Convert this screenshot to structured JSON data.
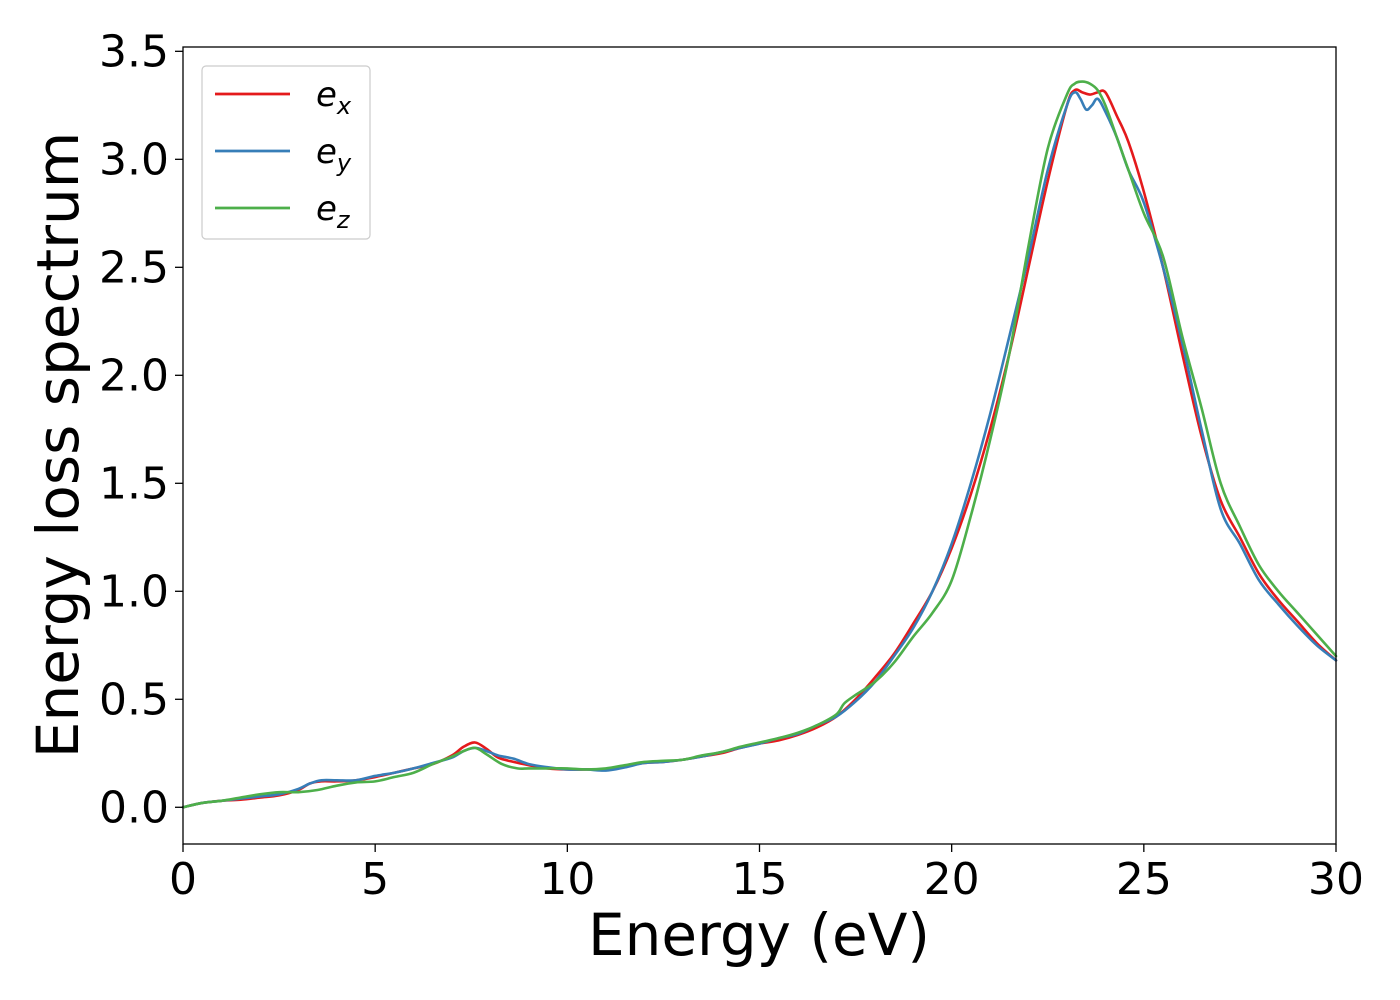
{
  "chart_data": {
    "type": "line",
    "xlabel": "Energy (eV)",
    "ylabel": "Energy loss spectrum",
    "xlim": [
      0,
      30
    ],
    "ylim": [
      -0.17,
      3.52
    ],
    "xticks": [
      0,
      5,
      10,
      15,
      20,
      25,
      30
    ],
    "xtick_labels": [
      "0",
      "5",
      "10",
      "15",
      "20",
      "25",
      "30"
    ],
    "yticks": [
      0.0,
      0.5,
      1.0,
      1.5,
      2.0,
      2.5,
      3.0,
      3.5
    ],
    "ytick_labels": [
      "0.0",
      "0.5",
      "1.0",
      "1.5",
      "2.0",
      "2.5",
      "3.0",
      "3.5"
    ],
    "grid": false,
    "legend_position": "top-left",
    "series": [
      {
        "name": "e",
        "subscript": "x",
        "color": "#e41a1c",
        "x": [
          0,
          0.5,
          1,
          1.5,
          2,
          2.5,
          3,
          3.3,
          3.6,
          4,
          4.5,
          5,
          5.5,
          6,
          6.5,
          7,
          7.3,
          7.6,
          7.9,
          8.2,
          8.6,
          9,
          9.5,
          10,
          10.5,
          11,
          11.5,
          12,
          12.5,
          13,
          13.5,
          14,
          14.5,
          15,
          15.5,
          16,
          16.5,
          17,
          17.5,
          18,
          18.5,
          19,
          19.5,
          20,
          20.5,
          21,
          21.5,
          22,
          22.5,
          23,
          23.2,
          23.4,
          23.6,
          23.8,
          24,
          24.3,
          24.6,
          25,
          25.5,
          26,
          26.5,
          27,
          27.5,
          28,
          28.5,
          29,
          29.5,
          30
        ],
        "y": [
          0.0,
          0.02,
          0.03,
          0.035,
          0.045,
          0.055,
          0.08,
          0.11,
          0.12,
          0.12,
          0.125,
          0.14,
          0.16,
          0.18,
          0.2,
          0.24,
          0.28,
          0.3,
          0.27,
          0.23,
          0.21,
          0.195,
          0.18,
          0.175,
          0.175,
          0.175,
          0.19,
          0.205,
          0.21,
          0.22,
          0.235,
          0.25,
          0.275,
          0.295,
          0.31,
          0.335,
          0.37,
          0.42,
          0.5,
          0.6,
          0.71,
          0.85,
          1.0,
          1.2,
          1.45,
          1.75,
          2.1,
          2.5,
          2.9,
          3.25,
          3.32,
          3.31,
          3.3,
          3.31,
          3.31,
          3.2,
          3.08,
          2.85,
          2.5,
          2.1,
          1.72,
          1.42,
          1.25,
          1.08,
          0.96,
          0.86,
          0.76,
          0.68
        ]
      },
      {
        "name": "e",
        "subscript": "y",
        "color": "#377eb8",
        "x": [
          0,
          0.5,
          1,
          1.5,
          2,
          2.5,
          3,
          3.3,
          3.6,
          4,
          4.5,
          5,
          5.5,
          6,
          6.5,
          7,
          7.3,
          7.6,
          7.9,
          8.2,
          8.6,
          9,
          9.5,
          10,
          10.5,
          11,
          11.5,
          12,
          12.5,
          13,
          13.5,
          14,
          14.5,
          15,
          15.5,
          16,
          16.5,
          17,
          17.5,
          18,
          18.5,
          19,
          19.5,
          20,
          20.5,
          21,
          21.5,
          22,
          22.5,
          23,
          23.2,
          23.35,
          23.5,
          23.65,
          23.8,
          24,
          24.3,
          24.6,
          25,
          25.5,
          26,
          26.5,
          27,
          27.5,
          28,
          28.5,
          29,
          29.5,
          30
        ],
        "y": [
          0.0,
          0.02,
          0.03,
          0.04,
          0.05,
          0.06,
          0.085,
          0.11,
          0.125,
          0.125,
          0.125,
          0.145,
          0.16,
          0.18,
          0.205,
          0.23,
          0.26,
          0.275,
          0.26,
          0.24,
          0.225,
          0.2,
          0.185,
          0.175,
          0.175,
          0.17,
          0.185,
          0.205,
          0.21,
          0.22,
          0.235,
          0.255,
          0.275,
          0.295,
          0.32,
          0.34,
          0.38,
          0.42,
          0.49,
          0.58,
          0.7,
          0.83,
          1.0,
          1.22,
          1.5,
          1.82,
          2.18,
          2.55,
          2.95,
          3.25,
          3.31,
          3.28,
          3.23,
          3.25,
          3.28,
          3.22,
          3.1,
          2.95,
          2.8,
          2.5,
          2.15,
          1.75,
          1.38,
          1.22,
          1.05,
          0.94,
          0.84,
          0.75,
          0.68
        ]
      },
      {
        "name": "e",
        "subscript": "z",
        "color": "#4daf4a",
        "x": [
          0,
          0.5,
          1,
          1.5,
          2,
          2.5,
          3,
          3.5,
          4,
          4.5,
          5,
          5.5,
          6,
          6.5,
          7,
          7.3,
          7.6,
          7.9,
          8.3,
          8.7,
          9,
          9.5,
          10,
          10.5,
          11,
          11.5,
          12,
          12.5,
          13,
          13.5,
          14,
          14.5,
          15,
          15.5,
          16,
          16.5,
          17,
          17.2,
          17.5,
          18,
          18.5,
          19,
          19.5,
          20,
          20.5,
          21,
          21.5,
          22,
          22.5,
          23,
          23.2,
          23.4,
          23.6,
          23.8,
          24,
          24.3,
          24.6,
          25,
          25.5,
          26,
          26.5,
          27,
          27.5,
          28,
          28.5,
          29,
          29.5,
          30
        ],
        "y": [
          0.0,
          0.02,
          0.03,
          0.045,
          0.06,
          0.07,
          0.07,
          0.08,
          0.1,
          0.115,
          0.12,
          0.14,
          0.16,
          0.2,
          0.235,
          0.26,
          0.275,
          0.245,
          0.2,
          0.18,
          0.18,
          0.18,
          0.18,
          0.175,
          0.18,
          0.195,
          0.21,
          0.215,
          0.22,
          0.24,
          0.255,
          0.28,
          0.3,
          0.32,
          0.345,
          0.38,
          0.43,
          0.48,
          0.52,
          0.58,
          0.67,
          0.79,
          0.9,
          1.05,
          1.35,
          1.7,
          2.1,
          2.6,
          3.05,
          3.3,
          3.35,
          3.36,
          3.35,
          3.32,
          3.25,
          3.1,
          2.95,
          2.75,
          2.55,
          2.18,
          1.85,
          1.5,
          1.3,
          1.12,
          1.0,
          0.9,
          0.8,
          0.7
        ]
      }
    ]
  }
}
